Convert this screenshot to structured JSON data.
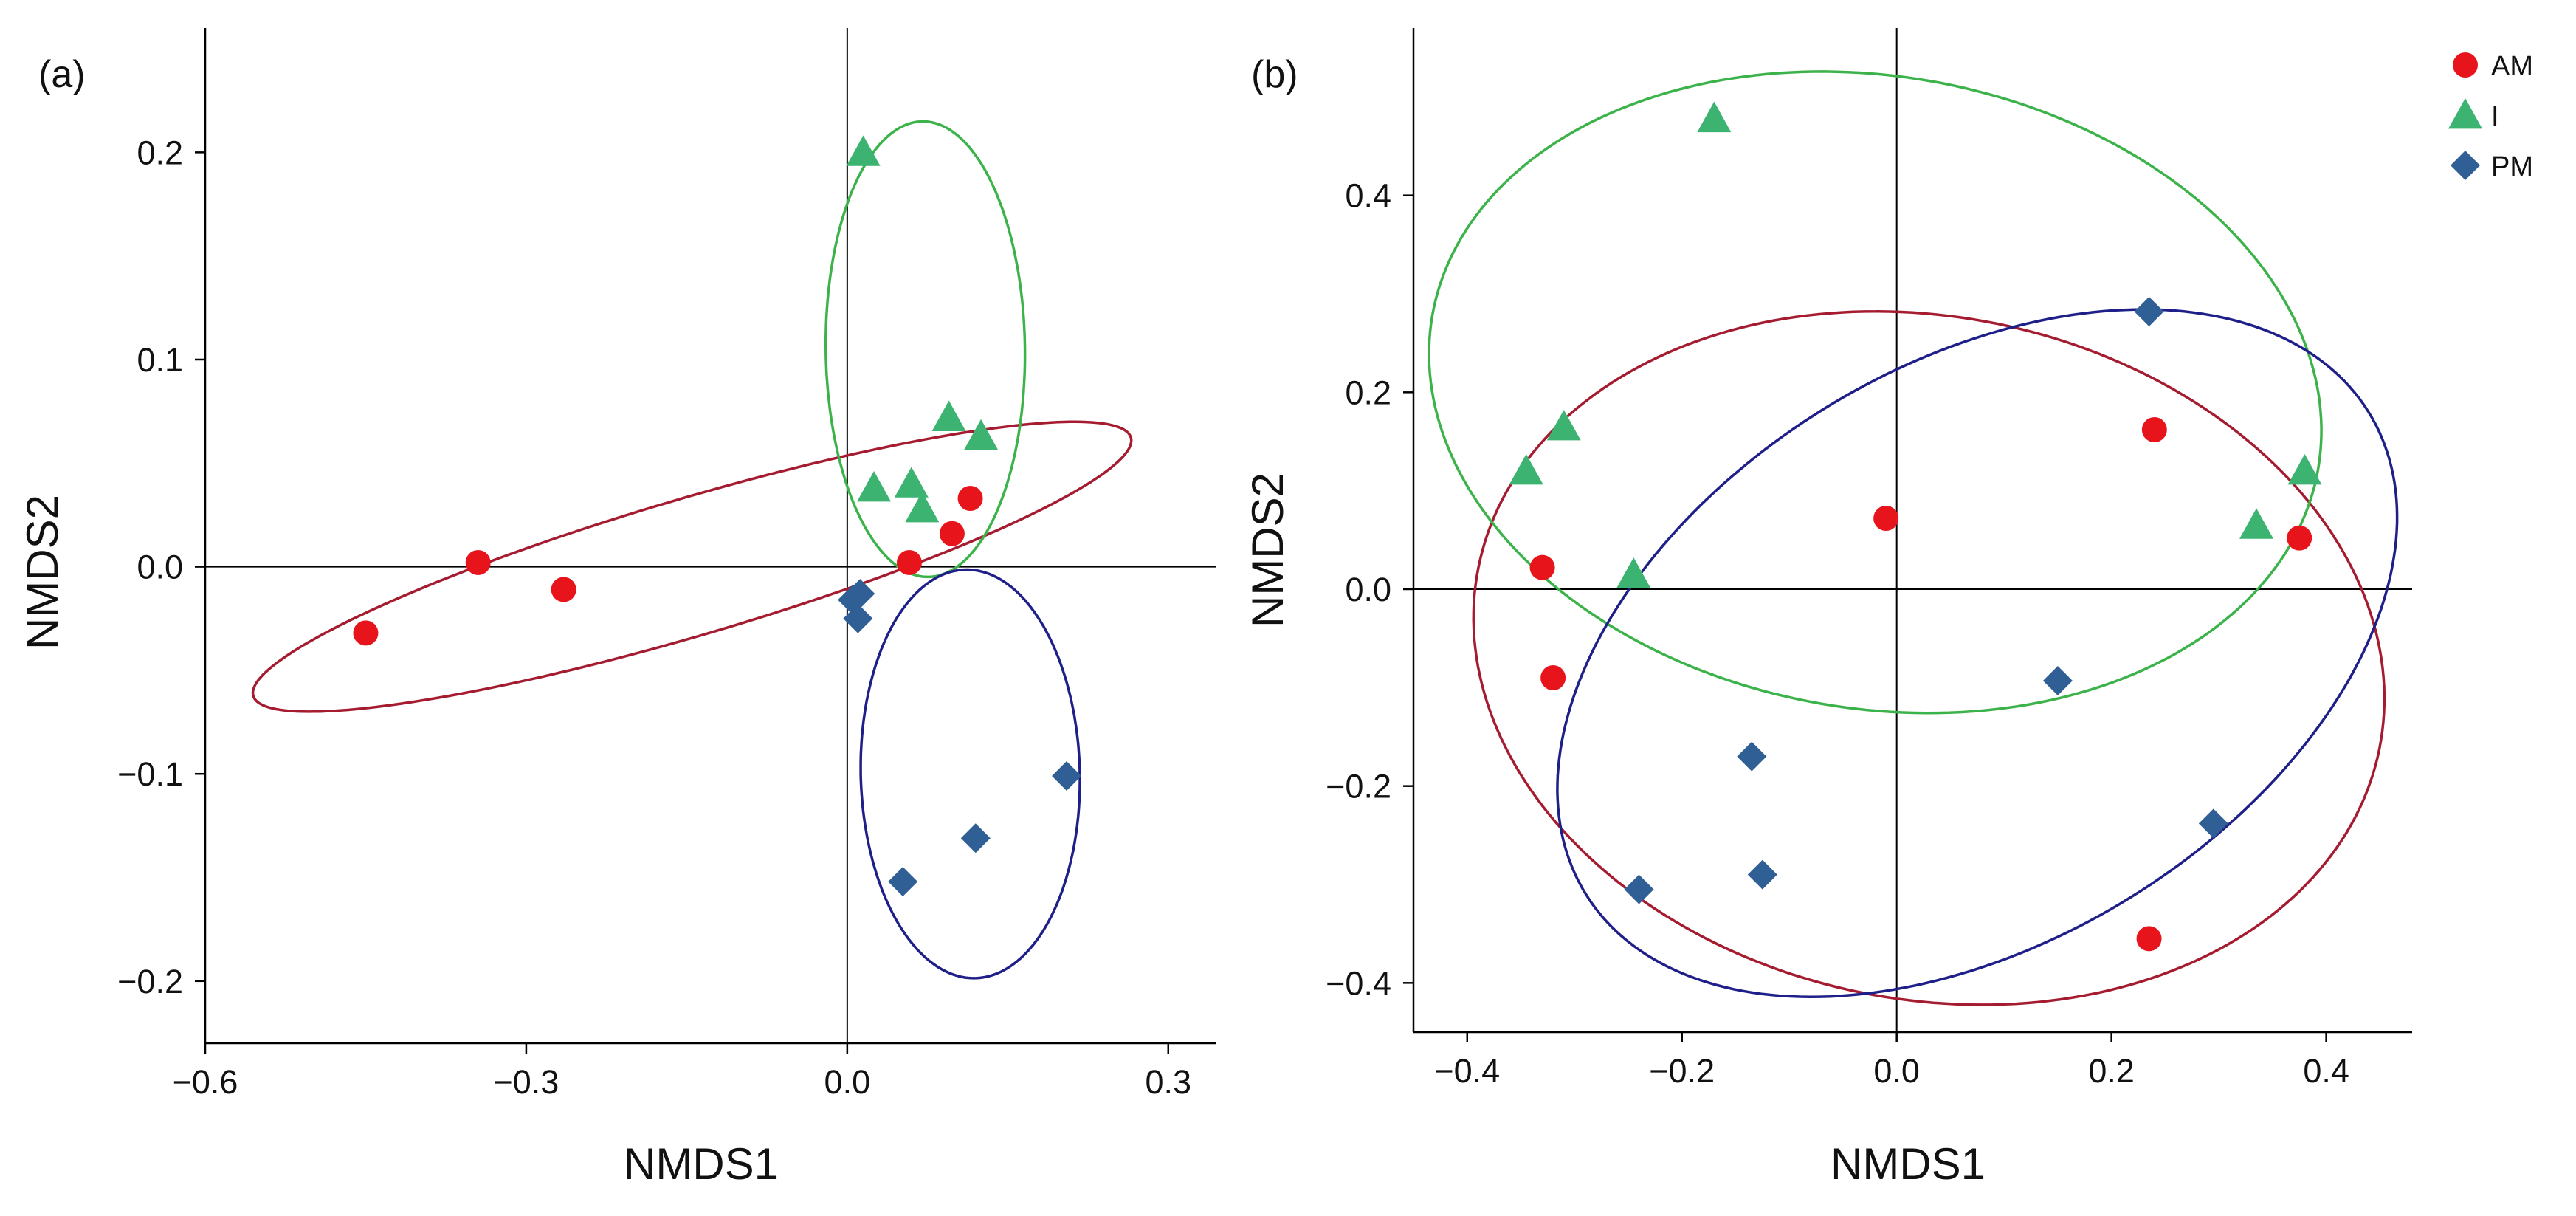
{
  "chart_data": [
    {
      "type": "scatter",
      "panel_label": "(a)",
      "xlabel": "NMDS1",
      "ylabel": "NMDS2",
      "xlim": [
        -0.6,
        0.345
      ],
      "ylim": [
        -0.23,
        0.26
      ],
      "x_ticks": [
        -0.6,
        -0.3,
        0.0,
        0.3
      ],
      "x_tick_labels": [
        "−0.6",
        "−0.3",
        "0.0",
        "0.3"
      ],
      "y_ticks": [
        -0.2,
        -0.1,
        0.0,
        0.1,
        0.2
      ],
      "y_tick_labels": [
        "−0.2",
        "−0.1",
        "0.0",
        "0.1",
        "0.2"
      ],
      "reference_lines": {
        "x": 0,
        "y": 0
      },
      "series": [
        {
          "name": "AM",
          "color": "#e8141c",
          "marker": "circle",
          "x": [
            -0.45,
            -0.345,
            -0.265,
            0.058,
            0.098,
            0.115
          ],
          "y": [
            -0.032,
            0.002,
            -0.011,
            0.002,
            0.016,
            0.033
          ],
          "ellipse": {
            "center": [
              -0.145,
              0.0
            ],
            "semi_axes": [
              0.415,
              0.034
            ],
            "angle_deg": 8.5,
            "color": "#a51c30"
          }
        },
        {
          "name": "I",
          "color": "#3cb371",
          "marker": "triangle",
          "x": [
            0.015,
            0.025,
            0.06,
            0.07,
            0.095,
            0.125
          ],
          "y": [
            0.2,
            0.038,
            0.04,
            0.028,
            0.072,
            0.063
          ],
          "ellipse": {
            "center": [
              0.073,
              0.105
            ],
            "semi_axes": [
              0.093,
              0.11
            ],
            "angle_deg": 4,
            "color": "#3cb34a"
          }
        },
        {
          "name": "PM",
          "color": "#2f5f94",
          "marker": "diamond",
          "x": [
            0.005,
            0.012,
            0.01,
            0.052,
            0.12,
            0.205
          ],
          "y": [
            -0.016,
            -0.013,
            -0.025,
            -0.152,
            -0.131,
            -0.101
          ],
          "ellipse": {
            "center": [
              0.115,
              -0.1
            ],
            "semi_axes": [
              0.103,
              0.098
            ],
            "angle_deg": -20,
            "color": "#1f1f8a"
          }
        }
      ]
    },
    {
      "type": "scatter",
      "panel_label": "(b)",
      "xlabel": "NMDS1",
      "ylabel": "NMDS2",
      "xlim": [
        -0.45,
        0.48
      ],
      "ylim": [
        -0.45,
        0.57
      ],
      "x_ticks": [
        -0.4,
        -0.2,
        0.0,
        0.2,
        0.4
      ],
      "x_tick_labels": [
        "−0.4",
        "−0.2",
        "0.0",
        "0.2",
        "0.4"
      ],
      "y_ticks": [
        -0.4,
        -0.2,
        0.0,
        0.2,
        0.4
      ],
      "y_tick_labels": [
        "−0.4",
        "−0.2",
        "0.0",
        "0.2",
        "0.4"
      ],
      "reference_lines": {
        "x": 0,
        "y": 0
      },
      "series": [
        {
          "name": "AM",
          "color": "#e8141c",
          "marker": "circle",
          "x": [
            -0.33,
            -0.32,
            -0.01,
            0.24,
            0.235,
            0.375
          ],
          "y": [
            0.022,
            -0.09,
            0.072,
            0.162,
            -0.355,
            0.052
          ],
          "ellipse": {
            "center": [
              0.03,
              -0.07
            ],
            "semi_axes": [
              0.43,
              0.345
            ],
            "angle_deg": -16,
            "color": "#a51c30"
          }
        },
        {
          "name": "I",
          "color": "#3cb371",
          "marker": "triangle",
          "x": [
            -0.345,
            -0.31,
            -0.245,
            -0.17,
            0.335,
            0.38
          ],
          "y": [
            0.12,
            0.165,
            0.015,
            0.478,
            0.065,
            0.12
          ],
          "ellipse": {
            "center": [
              -0.02,
              0.2
            ],
            "semi_axes": [
              0.42,
              0.32
            ],
            "angle_deg": -13,
            "color": "#3cb34a"
          }
        },
        {
          "name": "PM",
          "color": "#2f5f94",
          "marker": "diamond",
          "x": [
            -0.24,
            -0.135,
            -0.125,
            0.15,
            0.235,
            0.295
          ],
          "y": [
            -0.305,
            -0.17,
            -0.29,
            -0.093,
            0.282,
            -0.238
          ],
          "ellipse": {
            "center": [
              0.075,
              -0.065
            ],
            "semi_axes": [
              0.44,
              0.285
            ],
            "angle_deg": 37,
            "color": "#1f1f8a"
          }
        }
      ]
    }
  ],
  "legend": {
    "placement": "top-right",
    "entries": [
      {
        "label": "AM",
        "color": "#e8141c",
        "marker": "circle"
      },
      {
        "label": "I",
        "color": "#3cb371",
        "marker": "triangle"
      },
      {
        "label": "PM",
        "color": "#2f5f94",
        "marker": "diamond"
      }
    ]
  }
}
